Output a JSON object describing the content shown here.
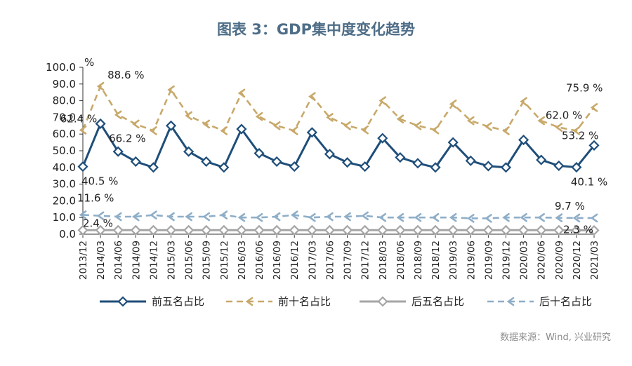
{
  "title": "图表 3：GDP集中度变化趋势",
  "source": "数据来源：Wind, 兴业研究",
  "chart_data": {
    "type": "line",
    "unit_label": "%",
    "ylim": [
      0,
      100
    ],
    "y_ticks": [
      "0.0",
      "10.0",
      "20.0",
      "30.0",
      "40.0",
      "50.0",
      "60.0",
      "70.0",
      "80.0",
      "90.0",
      "100.0"
    ],
    "categories": [
      "2013/12",
      "2014/03",
      "2014/06",
      "2014/09",
      "2014/12",
      "2015/03",
      "2015/06",
      "2015/09",
      "2015/12",
      "2016/03",
      "2016/06",
      "2016/09",
      "2016/12",
      "2017/03",
      "2017/06",
      "2017/09",
      "2017/12",
      "2018/03",
      "2018/06",
      "2018/09",
      "2018/12",
      "2019/03",
      "2019/06",
      "2019/09",
      "2019/12",
      "2020/03",
      "2020/06",
      "2020/09",
      "2020/12",
      "2021/03"
    ],
    "series": [
      {
        "name": "前五名占比",
        "color": "#1f4e79",
        "dash": "solid",
        "values": [
          40.5,
          66.2,
          49.5,
          43.5,
          40.0,
          65.0,
          49.5,
          43.5,
          40.0,
          63.0,
          48.5,
          43.5,
          40.5,
          61.0,
          48.0,
          43.0,
          40.5,
          57.5,
          46.0,
          42.5,
          40.0,
          55.0,
          44.0,
          40.8,
          40.0,
          56.5,
          44.5,
          41.0,
          40.1,
          53.2
        ]
      },
      {
        "name": "前十名占比",
        "color": "#c8a96a",
        "dash": "dashed",
        "values": [
          62.4,
          88.6,
          71.5,
          66.0,
          62.0,
          86.5,
          71.0,
          66.0,
          62.0,
          84.5,
          70.5,
          65.0,
          62.0,
          82.5,
          70.0,
          65.0,
          62.5,
          80.0,
          69.0,
          65.0,
          62.5,
          78.0,
          68.0,
          64.5,
          62.0,
          79.5,
          68.0,
          64.0,
          62.0,
          75.9
        ]
      },
      {
        "name": "后五名占比",
        "color": "#a6a6a6",
        "dash": "solid",
        "values": [
          2.4,
          2.4,
          2.4,
          2.4,
          2.4,
          2.4,
          2.4,
          2.4,
          2.4,
          2.4,
          2.4,
          2.4,
          2.4,
          2.4,
          2.4,
          2.4,
          2.4,
          2.4,
          2.4,
          2.4,
          2.4,
          2.4,
          2.4,
          2.4,
          2.4,
          2.4,
          2.4,
          2.4,
          2.3,
          2.3
        ]
      },
      {
        "name": "后十名占比",
        "color": "#8eaec8",
        "dash": "dashed",
        "values": [
          11.6,
          11.0,
          10.5,
          10.5,
          11.5,
          10.5,
          10.5,
          10.5,
          11.5,
          10.0,
          10.0,
          10.5,
          11.5,
          10.0,
          10.5,
          10.5,
          11.0,
          10.0,
          10.0,
          10.0,
          10.0,
          10.0,
          9.5,
          9.5,
          10.0,
          10.0,
          10.0,
          9.8,
          9.7,
          9.7
        ]
      }
    ],
    "data_labels": [
      {
        "series": 0,
        "index": 0,
        "text": "40.5 %"
      },
      {
        "series": 0,
        "index": 1,
        "text": "66.2 %"
      },
      {
        "series": 0,
        "index": 28,
        "text": "40.1 %"
      },
      {
        "series": 0,
        "index": 29,
        "text": "53.2 %"
      },
      {
        "series": 1,
        "index": 0,
        "text": "62.4 %"
      },
      {
        "series": 1,
        "index": 1,
        "text": "88.6 %"
      },
      {
        "series": 1,
        "index": 28,
        "text": "62.0 %"
      },
      {
        "series": 1,
        "index": 29,
        "text": "75.9 %"
      },
      {
        "series": 2,
        "index": 0,
        "text": "2.4 %"
      },
      {
        "series": 2,
        "index": 29,
        "text": "2.3 %"
      },
      {
        "series": 3,
        "index": 0,
        "text": "11.6 %"
      },
      {
        "series": 3,
        "index": 29,
        "text": "9.7 %"
      }
    ],
    "legend_position": "bottom"
  }
}
